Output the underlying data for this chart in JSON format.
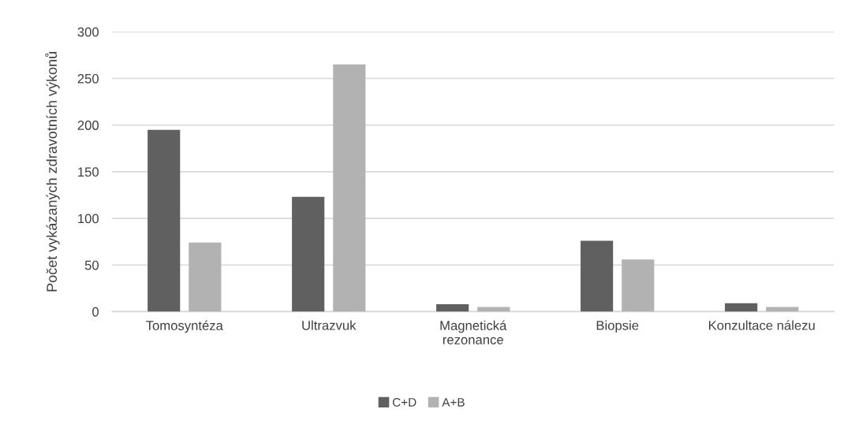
{
  "chart_data": {
    "type": "bar",
    "ylabel": "Počet vykázaných zdravotních výkonů",
    "categories": [
      "Tomosyntéza",
      "Ultrazvuk",
      "Magnetická\nrezonance",
      "Biopsie",
      "Konzultace nálezu"
    ],
    "series": [
      {
        "name": "C+D",
        "color": "#606060",
        "values": [
          195,
          123,
          8,
          76,
          9
        ]
      },
      {
        "name": "A+B",
        "color": "#b2b2b2",
        "values": [
          74,
          265,
          5,
          56,
          5
        ]
      }
    ],
    "ylim": [
      0,
      300
    ],
    "yticks": [
      0,
      50,
      100,
      150,
      200,
      250,
      300
    ],
    "grid": "y",
    "legend": "bottom"
  }
}
